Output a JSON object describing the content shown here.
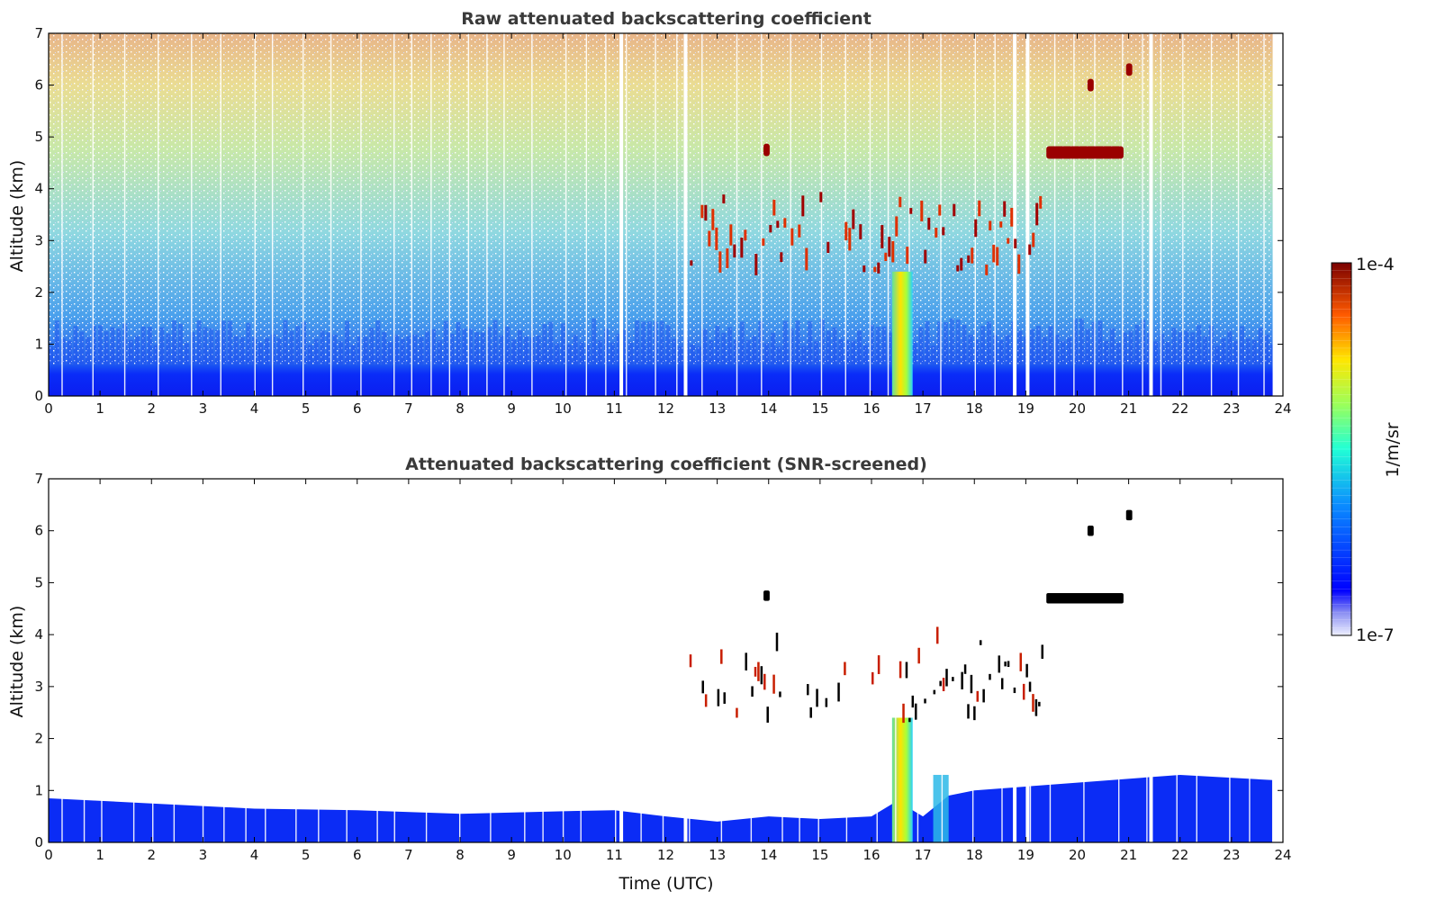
{
  "chart_data": [
    {
      "type": "heatmap",
      "title": "Raw attenuated backscattering coefficient",
      "xlabel": "",
      "ylabel": "Altitude (km)",
      "xlim": [
        0,
        24
      ],
      "ylim": [
        0,
        7
      ],
      "x_ticks": [
        "0",
        "1",
        "2",
        "3",
        "4",
        "5",
        "6",
        "7",
        "8",
        "9",
        "10",
        "11",
        "12",
        "13",
        "14",
        "15",
        "16",
        "17",
        "18",
        "19",
        "20",
        "21",
        "22",
        "23",
        "24"
      ],
      "y_ticks": [
        "0",
        "1",
        "2",
        "3",
        "4",
        "5",
        "6",
        "7"
      ],
      "data_end_time": 23.8,
      "data_gaps_time": [
        11.1,
        12.35,
        18.75,
        19.0,
        21.4
      ],
      "features": {
        "boundary_layer": {
          "top_km": 0.6,
          "note": "dense low backscatter layer"
        },
        "noise": "increasing with altitude",
        "cloud_layer": {
          "start_time": 12.4,
          "end_time": 19.4,
          "base_km": 2.3,
          "top_km": 4.0
        },
        "precipitation_shaft": {
          "start_time": 16.4,
          "end_time": 16.8,
          "top_km": 2.4
        },
        "upper_clouds": [
          {
            "time": 13.9,
            "alt_km": 4.75
          },
          {
            "start_time": 19.4,
            "end_time": 20.9,
            "alt_km": 4.7
          },
          {
            "time": 20.95,
            "alt_km": 6.3
          },
          {
            "time": 20.2,
            "alt_km": 6.0
          }
        ]
      }
    },
    {
      "type": "heatmap",
      "title": "Attenuated backscattering coefficient (SNR-screened)",
      "xlabel": "Time (UTC)",
      "ylabel": "Altitude (km)",
      "xlim": [
        0,
        24
      ],
      "ylim": [
        0,
        7
      ],
      "x_ticks": [
        "0",
        "1",
        "2",
        "3",
        "4",
        "5",
        "6",
        "7",
        "8",
        "9",
        "10",
        "11",
        "12",
        "13",
        "14",
        "15",
        "16",
        "17",
        "18",
        "19",
        "20",
        "21",
        "22",
        "23",
        "24"
      ],
      "y_ticks": [
        "0",
        "1",
        "2",
        "3",
        "4",
        "5",
        "6",
        "7"
      ],
      "features": {
        "boundary_layer_top_km": [
          [
            0,
            0.85
          ],
          [
            2,
            0.75
          ],
          [
            4,
            0.65
          ],
          [
            6,
            0.62
          ],
          [
            8,
            0.55
          ],
          [
            10,
            0.6
          ],
          [
            11,
            0.62
          ],
          [
            12,
            0.5
          ],
          [
            13,
            0.4
          ],
          [
            14,
            0.5
          ],
          [
            15,
            0.45
          ],
          [
            16,
            0.5
          ],
          [
            16.5,
            0.8
          ],
          [
            17,
            0.5
          ],
          [
            17.5,
            0.9
          ],
          [
            18,
            1.0
          ],
          [
            20,
            1.15
          ],
          [
            22,
            1.3
          ],
          [
            23.8,
            1.2
          ]
        ]
      }
    }
  ],
  "colorbar": {
    "label": "1/m/sr",
    "max_label": "1e-4",
    "min_label": "1e-7",
    "scale": "log",
    "colormap": "jet"
  }
}
